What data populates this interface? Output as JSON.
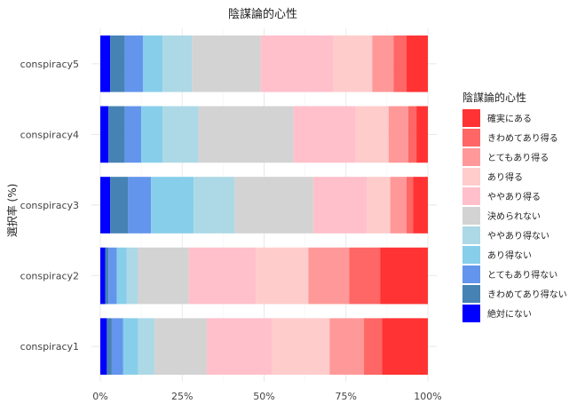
{
  "chart_data": {
    "type": "bar",
    "orientation": "horizontal-stacked-percent",
    "title": "陰謀論的心性",
    "ylabel": "選択率 (%)",
    "xlabel": "",
    "xlim": [
      0,
      100
    ],
    "x_ticks": [
      "0%",
      "25%",
      "50%",
      "75%",
      "100%"
    ],
    "grid": true,
    "legend_position": "right",
    "legend_title": "陰謀論的心性",
    "categories": [
      "conspiracy1",
      "conspiracy2",
      "conspiracy3",
      "conspiracy4",
      "conspiracy5"
    ],
    "series": [
      {
        "name": "絶対にない",
        "color": "#0000FF",
        "values": [
          2.0,
          1.5,
          3.0,
          2.5,
          3.0
        ]
      },
      {
        "name": "きわめてあり得ない",
        "color": "#4682B4",
        "values": [
          1.5,
          1.0,
          5.5,
          5.0,
          4.5
        ]
      },
      {
        "name": "とてもあり得ない",
        "color": "#6495ED",
        "values": [
          3.5,
          2.5,
          7.0,
          5.0,
          5.5
        ]
      },
      {
        "name": "あり得ない",
        "color": "#87CEEB",
        "values": [
          4.5,
          3.0,
          13.0,
          6.5,
          6.0
        ]
      },
      {
        "name": "ややあり得ない",
        "color": "#ADD8E6",
        "values": [
          5.0,
          3.5,
          12.5,
          11.0,
          9.0
        ]
      },
      {
        "name": "決められない",
        "color": "#D3D3D3",
        "values": [
          16.0,
          15.5,
          24.0,
          29.0,
          21.0
        ]
      },
      {
        "name": "ややあり得る",
        "color": "#FFC0CB",
        "values": [
          20.0,
          20.5,
          16.5,
          19.0,
          22.0
        ]
      },
      {
        "name": "あり得る",
        "color": "#FFCCCC",
        "values": [
          17.5,
          16.0,
          7.0,
          10.0,
          12.0
        ]
      },
      {
        "name": "とてもあり得る",
        "color": "#FF9999",
        "values": [
          10.5,
          12.5,
          5.0,
          6.0,
          6.5
        ]
      },
      {
        "name": "きわめてあり得る",
        "color": "#FF6666",
        "values": [
          5.5,
          9.5,
          2.0,
          2.5,
          4.0
        ]
      },
      {
        "name": "確実にある",
        "color": "#FF3333",
        "values": [
          14.0,
          14.5,
          4.5,
          3.5,
          6.5
        ]
      }
    ]
  }
}
